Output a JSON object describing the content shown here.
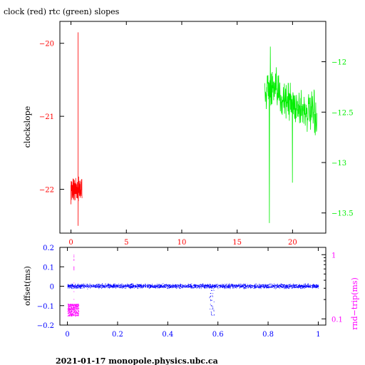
{
  "page": {
    "title": "clock (red) rtc (green) slopes",
    "footer": "2021-01-17  monopole.physics.ubc.ca"
  },
  "colors": {
    "clock": "#ff0000",
    "rtc": "#00ee00",
    "offset": "#0000ff",
    "rnd_trip": "#ff00ff",
    "axes": "#000000"
  },
  "chart_data": [
    {
      "type": "line",
      "title": "clock (red) rtc (green) slopes",
      "ylabel": "clockslope",
      "xlim": [
        -1.0,
        23.0
      ],
      "xticks": [
        0,
        5,
        10,
        15,
        20
      ],
      "xtick_labels": [
        "0",
        "5",
        "10",
        "15",
        "20"
      ],
      "ylim_left": [
        -22.6,
        -19.7
      ],
      "yticks_left": [
        -20,
        -21,
        -22
      ],
      "ytick_labels_left": [
        "−20",
        "−21",
        "−22"
      ],
      "ylim_right": [
        -13.7,
        -11.6
      ],
      "yticks_right": [
        -12,
        -12.5,
        -13,
        -13.5
      ],
      "ytick_labels_right": [
        "−12",
        "−12.5",
        "−13",
        "−13.5"
      ],
      "series": [
        {
          "axis": "left",
          "color": "#ff0000",
          "x_range": [
            0.0,
            1.0
          ],
          "y_center": -22.0,
          "y_spread": 0.22,
          "spike": {
            "x": 0.65,
            "y_max": -19.85,
            "y_min": -22.5
          },
          "n_points": 150
        },
        {
          "axis": "right",
          "color": "#00ee00",
          "x_range": [
            17.5,
            22.2
          ],
          "y_start": -12.25,
          "y_end": -12.55,
          "y_spread": 0.3,
          "extremes": [
            {
              "x": 18.0,
              "y": -11.85
            },
            {
              "x": 17.9,
              "y": -13.6
            },
            {
              "x": 20.0,
              "y": -13.2
            }
          ],
          "n_points": 220
        }
      ]
    },
    {
      "type": "scatter",
      "ylabel_left": "offset(ms)",
      "ylabel_right": "rnd−trip(ms)",
      "xlim": [
        -0.03,
        1.03
      ],
      "xticks": [
        0,
        0.2,
        0.4,
        0.6,
        0.8,
        1
      ],
      "xtick_labels": [
        "0",
        "0.2",
        "0.4",
        "0.6",
        "0.8",
        "1"
      ],
      "ylim_left": [
        -0.2,
        0.2
      ],
      "yticks_left": [
        0.2,
        0.1,
        0,
        -0.1,
        -0.2
      ],
      "ytick_labels_left": [
        "0.2",
        "0.1",
        "0",
        "−0.1",
        "−0.2"
      ],
      "ylim_right_log": [
        0.08,
        1.3
      ],
      "yticks_right": [
        1,
        0.1
      ],
      "ytick_labels_right": [
        "1",
        "0.1"
      ],
      "series": [
        {
          "axis": "left",
          "color": "#0000ff",
          "x_range": [
            0.0,
            1.0
          ],
          "y_center": 0.0,
          "y_spread": 0.015,
          "glitch": {
            "x": 0.575,
            "y_min": -0.15,
            "y_max": 0.02
          },
          "n_points": 2600
        },
        {
          "axis": "right",
          "color": "#ff00ff",
          "x_range": [
            0.0,
            0.045
          ],
          "y_values_range": [
            0.11,
            0.17
          ],
          "spike": {
            "x": 0.025,
            "y": 1.0
          },
          "n_points": 400
        }
      ]
    }
  ]
}
